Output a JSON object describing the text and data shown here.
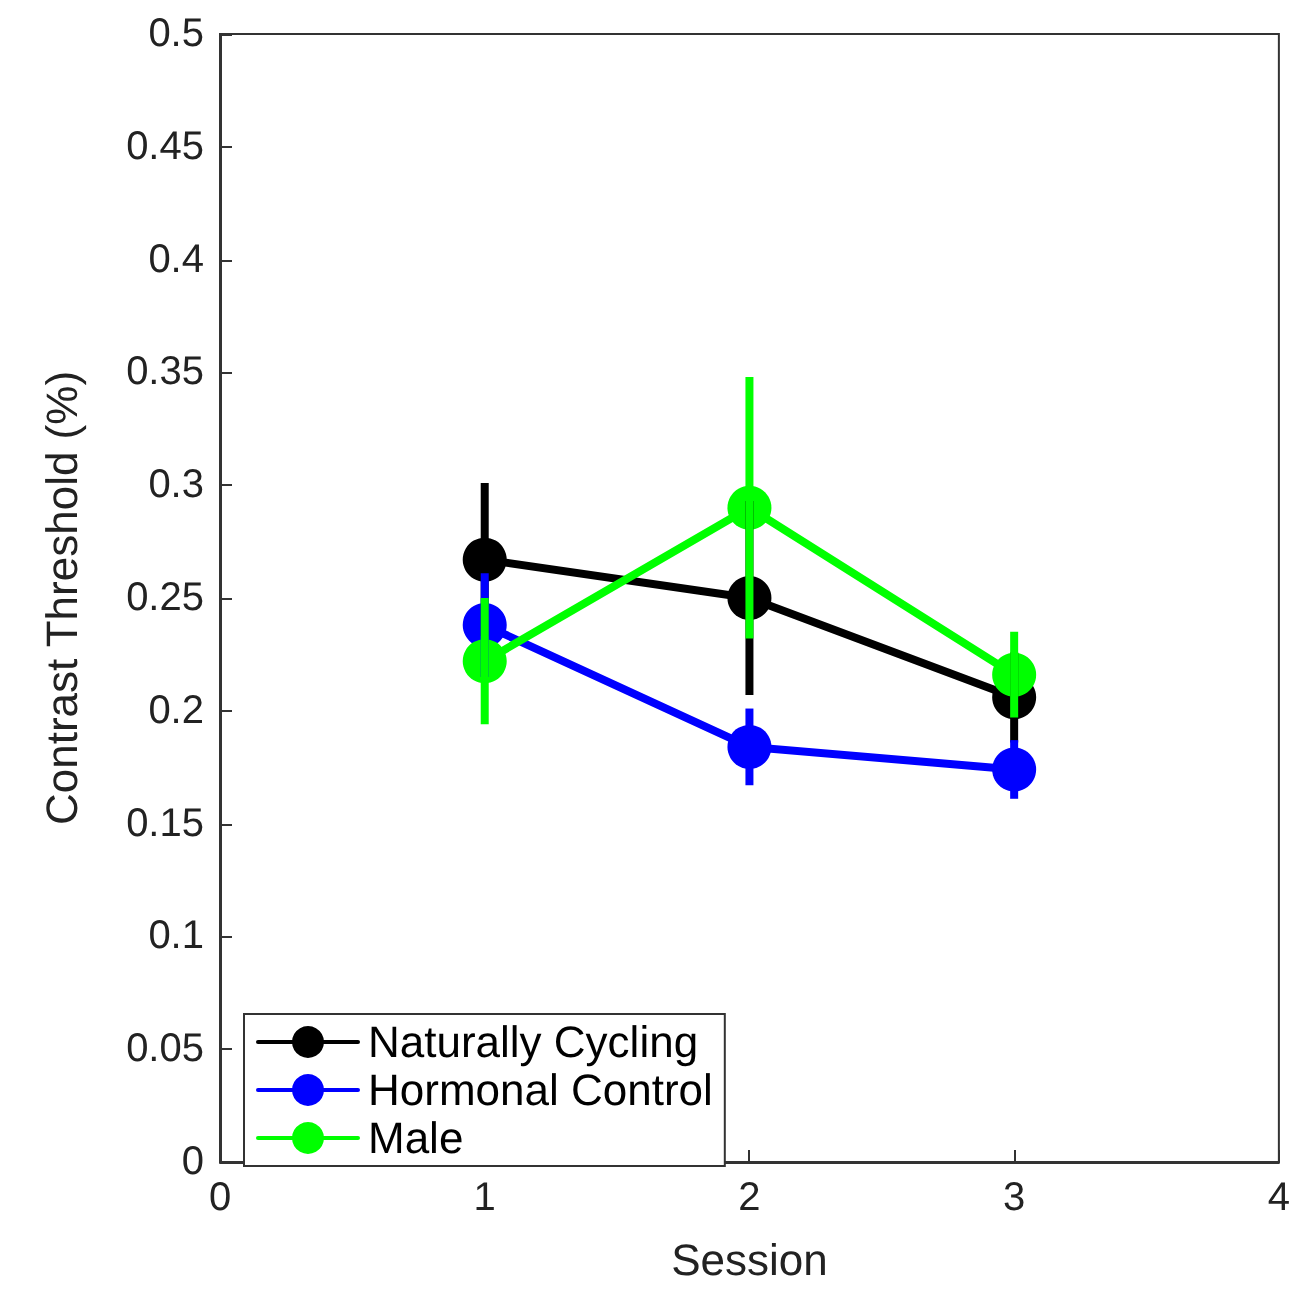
{
  "chart_data": {
    "type": "line",
    "xlabel": "Session",
    "ylabel": "Contrast Threshold (%)",
    "x": [
      1,
      2,
      3
    ],
    "series": [
      {
        "name": "Naturally Cycling",
        "color": "#000000",
        "values": [
          0.267,
          0.25,
          0.206
        ],
        "errors": [
          0.034,
          0.043,
          0.02
        ]
      },
      {
        "name": "Hormonal Control",
        "color": "#0000ff",
        "values": [
          0.238,
          0.184,
          0.174
        ],
        "errors": [
          0.023,
          0.017,
          0.013
        ]
      },
      {
        "name": "Male",
        "color": "#00ff00",
        "values": [
          0.222,
          0.29,
          0.216
        ],
        "errors": [
          0.028,
          0.058,
          0.019
        ]
      }
    ],
    "xlim": [
      0,
      4
    ],
    "xticks": [
      0,
      1,
      2,
      3,
      4
    ],
    "ylim": [
      0,
      0.5
    ],
    "yticks": [
      0,
      0.05,
      0.1,
      0.15,
      0.2,
      0.25,
      0.3,
      0.35,
      0.4,
      0.45,
      0.5
    ],
    "legend": "bottom left",
    "marker": "circle",
    "line_style": "solid",
    "grid": false
  }
}
